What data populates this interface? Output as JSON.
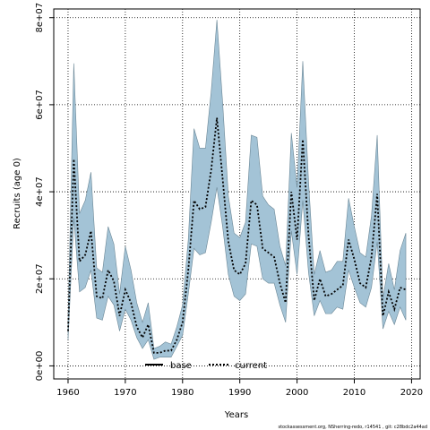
{
  "chart_data": {
    "type": "area",
    "title": "",
    "xlabel": "Years",
    "ylabel": "Recruits (age 0)",
    "xlim": [
      1957.5,
      2021.5
    ],
    "ylim": [
      -3000000,
      82000000
    ],
    "xticks": [
      1960,
      1970,
      1980,
      1990,
      2000,
      2010,
      2020
    ],
    "xtick_labels": [
      "1960",
      "1970",
      "1980",
      "1990",
      "2000",
      "2010",
      "2020"
    ],
    "yticks": [
      0,
      20000000,
      40000000,
      60000000,
      80000000
    ],
    "ytick_labels": [
      "0e+00",
      "2e+07",
      "4e+07",
      "6e+07",
      "8e+07"
    ],
    "grid": true,
    "legend": {
      "position": "bottom-center",
      "entries": [
        {
          "label": "base",
          "style": "solid",
          "color": "#000000"
        },
        {
          "label": "current",
          "style": "dotted",
          "color": "#000000"
        }
      ]
    },
    "band_color": "#a3c3d6",
    "band_edge_color": "#6b8796",
    "x": [
      1960,
      1961,
      1962,
      1963,
      1964,
      1965,
      1966,
      1967,
      1968,
      1969,
      1970,
      1971,
      1972,
      1973,
      1974,
      1975,
      1976,
      1977,
      1978,
      1979,
      1980,
      1981,
      1982,
      1983,
      1984,
      1985,
      1986,
      1987,
      1988,
      1989,
      1990,
      1991,
      1992,
      1993,
      1994,
      1995,
      1996,
      1997,
      1998,
      1999,
      2000,
      2001,
      2002,
      2003,
      2004,
      2005,
      2006,
      2007,
      2008,
      2009,
      2010,
      2011,
      2012,
      2013,
      2014,
      2015,
      2016,
      2017,
      2018,
      2019
    ],
    "series": [
      {
        "name": "current",
        "style": "dotted",
        "values": [
          8000000,
          47500000,
          24000000,
          25500000,
          31000000,
          16000000,
          15500000,
          22000000,
          19500000,
          11500000,
          17500000,
          14500000,
          9000000,
          6500000,
          9500000,
          3000000,
          3000000,
          3500000,
          3500000,
          6000000,
          10000000,
          22000000,
          38000000,
          36000000,
          36500000,
          45000000,
          57000000,
          43000000,
          28500000,
          22000000,
          21000000,
          23500000,
          38000000,
          37000000,
          27000000,
          26000000,
          25000000,
          19000000,
          14500000,
          40000000,
          29000000,
          52000000,
          30000000,
          15000000,
          20000000,
          16000000,
          16500000,
          17500000,
          18500000,
          29000000,
          24500000,
          19000000,
          18000000,
          25000000,
          39500000,
          11500000,
          17000000,
          13000000,
          18000000,
          17500000
        ]
      },
      {
        "name": "upper",
        "values": [
          10000000,
          69500000,
          35000000,
          38000000,
          44500000,
          22500000,
          21500000,
          32000000,
          28000000,
          16500000,
          27500000,
          22000000,
          14500000,
          10000000,
          14500000,
          4000000,
          4500000,
          5500000,
          5000000,
          9000000,
          14000000,
          29000000,
          54500000,
          50000000,
          50000000,
          63000000,
          79500000,
          60500000,
          39000000,
          30500000,
          29500000,
          33000000,
          53000000,
          52500000,
          39000000,
          37000000,
          36000000,
          27500000,
          23000000,
          53500000,
          41000000,
          70000000,
          42500000,
          21000000,
          26500000,
          21500000,
          22000000,
          24000000,
          24000000,
          38500000,
          32000000,
          26000000,
          25000000,
          34500000,
          53000000,
          15500000,
          23500000,
          17500000,
          26500000,
          30500000
        ]
      },
      {
        "name": "lower",
        "values": [
          6000000,
          34000000,
          17000000,
          18000000,
          22000000,
          11000000,
          10500000,
          16000000,
          14000000,
          8000000,
          13000000,
          10500000,
          6500000,
          4000000,
          6000000,
          1500000,
          2000000,
          2000000,
          2000000,
          4500000,
          7000000,
          16500000,
          27000000,
          25500000,
          26000000,
          33000000,
          41000000,
          32000000,
          21000000,
          16000000,
          15000000,
          16500000,
          28000000,
          27500000,
          20000000,
          19000000,
          19000000,
          14000000,
          10000000,
          31000000,
          21000000,
          38000000,
          21500000,
          11500000,
          15000000,
          12000000,
          12000000,
          13500000,
          13000000,
          22000000,
          18000000,
          14500000,
          13500000,
          18000000,
          28500000,
          8500000,
          12500000,
          9500000,
          13500000,
          10500000
        ]
      }
    ]
  },
  "footer_text": "stockassessment.org, NSherring-redo, r14541 , git: c28bdc2a44ad"
}
